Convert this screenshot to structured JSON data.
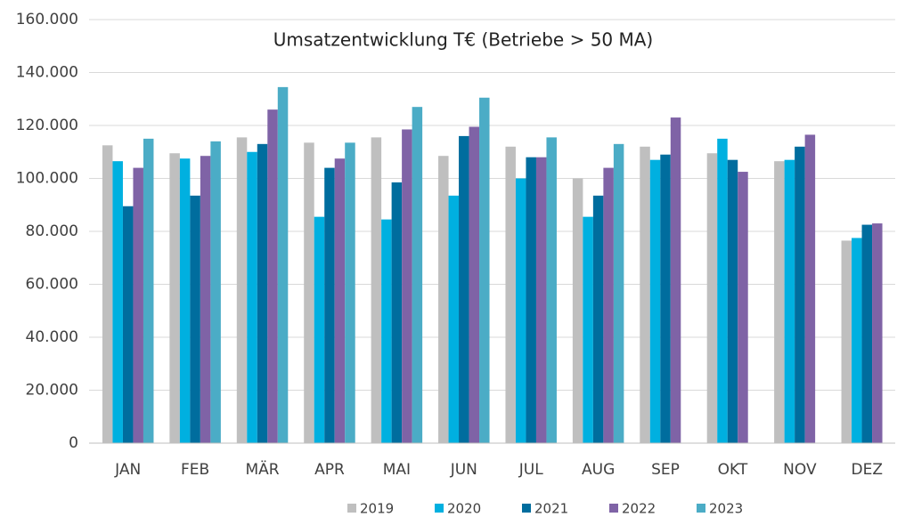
{
  "chart_data": {
    "type": "bar",
    "title": "Umsatzentwicklung T€ (Betriebe > 50 MA)",
    "categories": [
      "JAN",
      "FEB",
      "MÄR",
      "APR",
      "MAI",
      "JUN",
      "JUL",
      "AUG",
      "SEP",
      "OKT",
      "NOV",
      "DEZ"
    ],
    "series": [
      {
        "name": "2019",
        "color": "#bfbfbf",
        "values": [
          112500,
          109500,
          115500,
          113500,
          115500,
          108500,
          112000,
          100000,
          112000,
          109500,
          106500,
          76500
        ]
      },
      {
        "name": "2020",
        "color": "#00b0e0",
        "values": [
          106500,
          107500,
          110000,
          85500,
          84500,
          93500,
          100000,
          85500,
          107000,
          115000,
          107000,
          77500
        ]
      },
      {
        "name": "2021",
        "color": "#006d9e",
        "values": [
          89500,
          93500,
          113000,
          104000,
          98500,
          116000,
          108000,
          93500,
          109000,
          107000,
          112000,
          82500
        ]
      },
      {
        "name": "2022",
        "color": "#7f63a6",
        "values": [
          104000,
          108500,
          126000,
          107500,
          118500,
          119500,
          108000,
          104000,
          123000,
          102500,
          116500,
          83000
        ]
      },
      {
        "name": "2023",
        "color": "#4bacc6",
        "values": [
          115000,
          114000,
          134500,
          113500,
          127000,
          130500,
          115500,
          113000,
          null,
          null,
          null,
          null
        ]
      }
    ],
    "ylim": [
      0,
      160000
    ],
    "yticks": [
      0,
      {
        "value": 20000,
        "label": "20.000"
      },
      {
        "value": 40000,
        "label": "40.000"
      },
      {
        "value": 60000,
        "label": "60.000"
      },
      {
        "value": 80000,
        "label": "80.000"
      },
      {
        "value": 100000,
        "label": "100.000"
      },
      {
        "value": 120000,
        "label": "120.000"
      },
      {
        "value": 140000,
        "label": "140.000"
      },
      {
        "value": 160000,
        "label": "160.000"
      }
    ],
    "grid": true,
    "legend": "bottom"
  }
}
